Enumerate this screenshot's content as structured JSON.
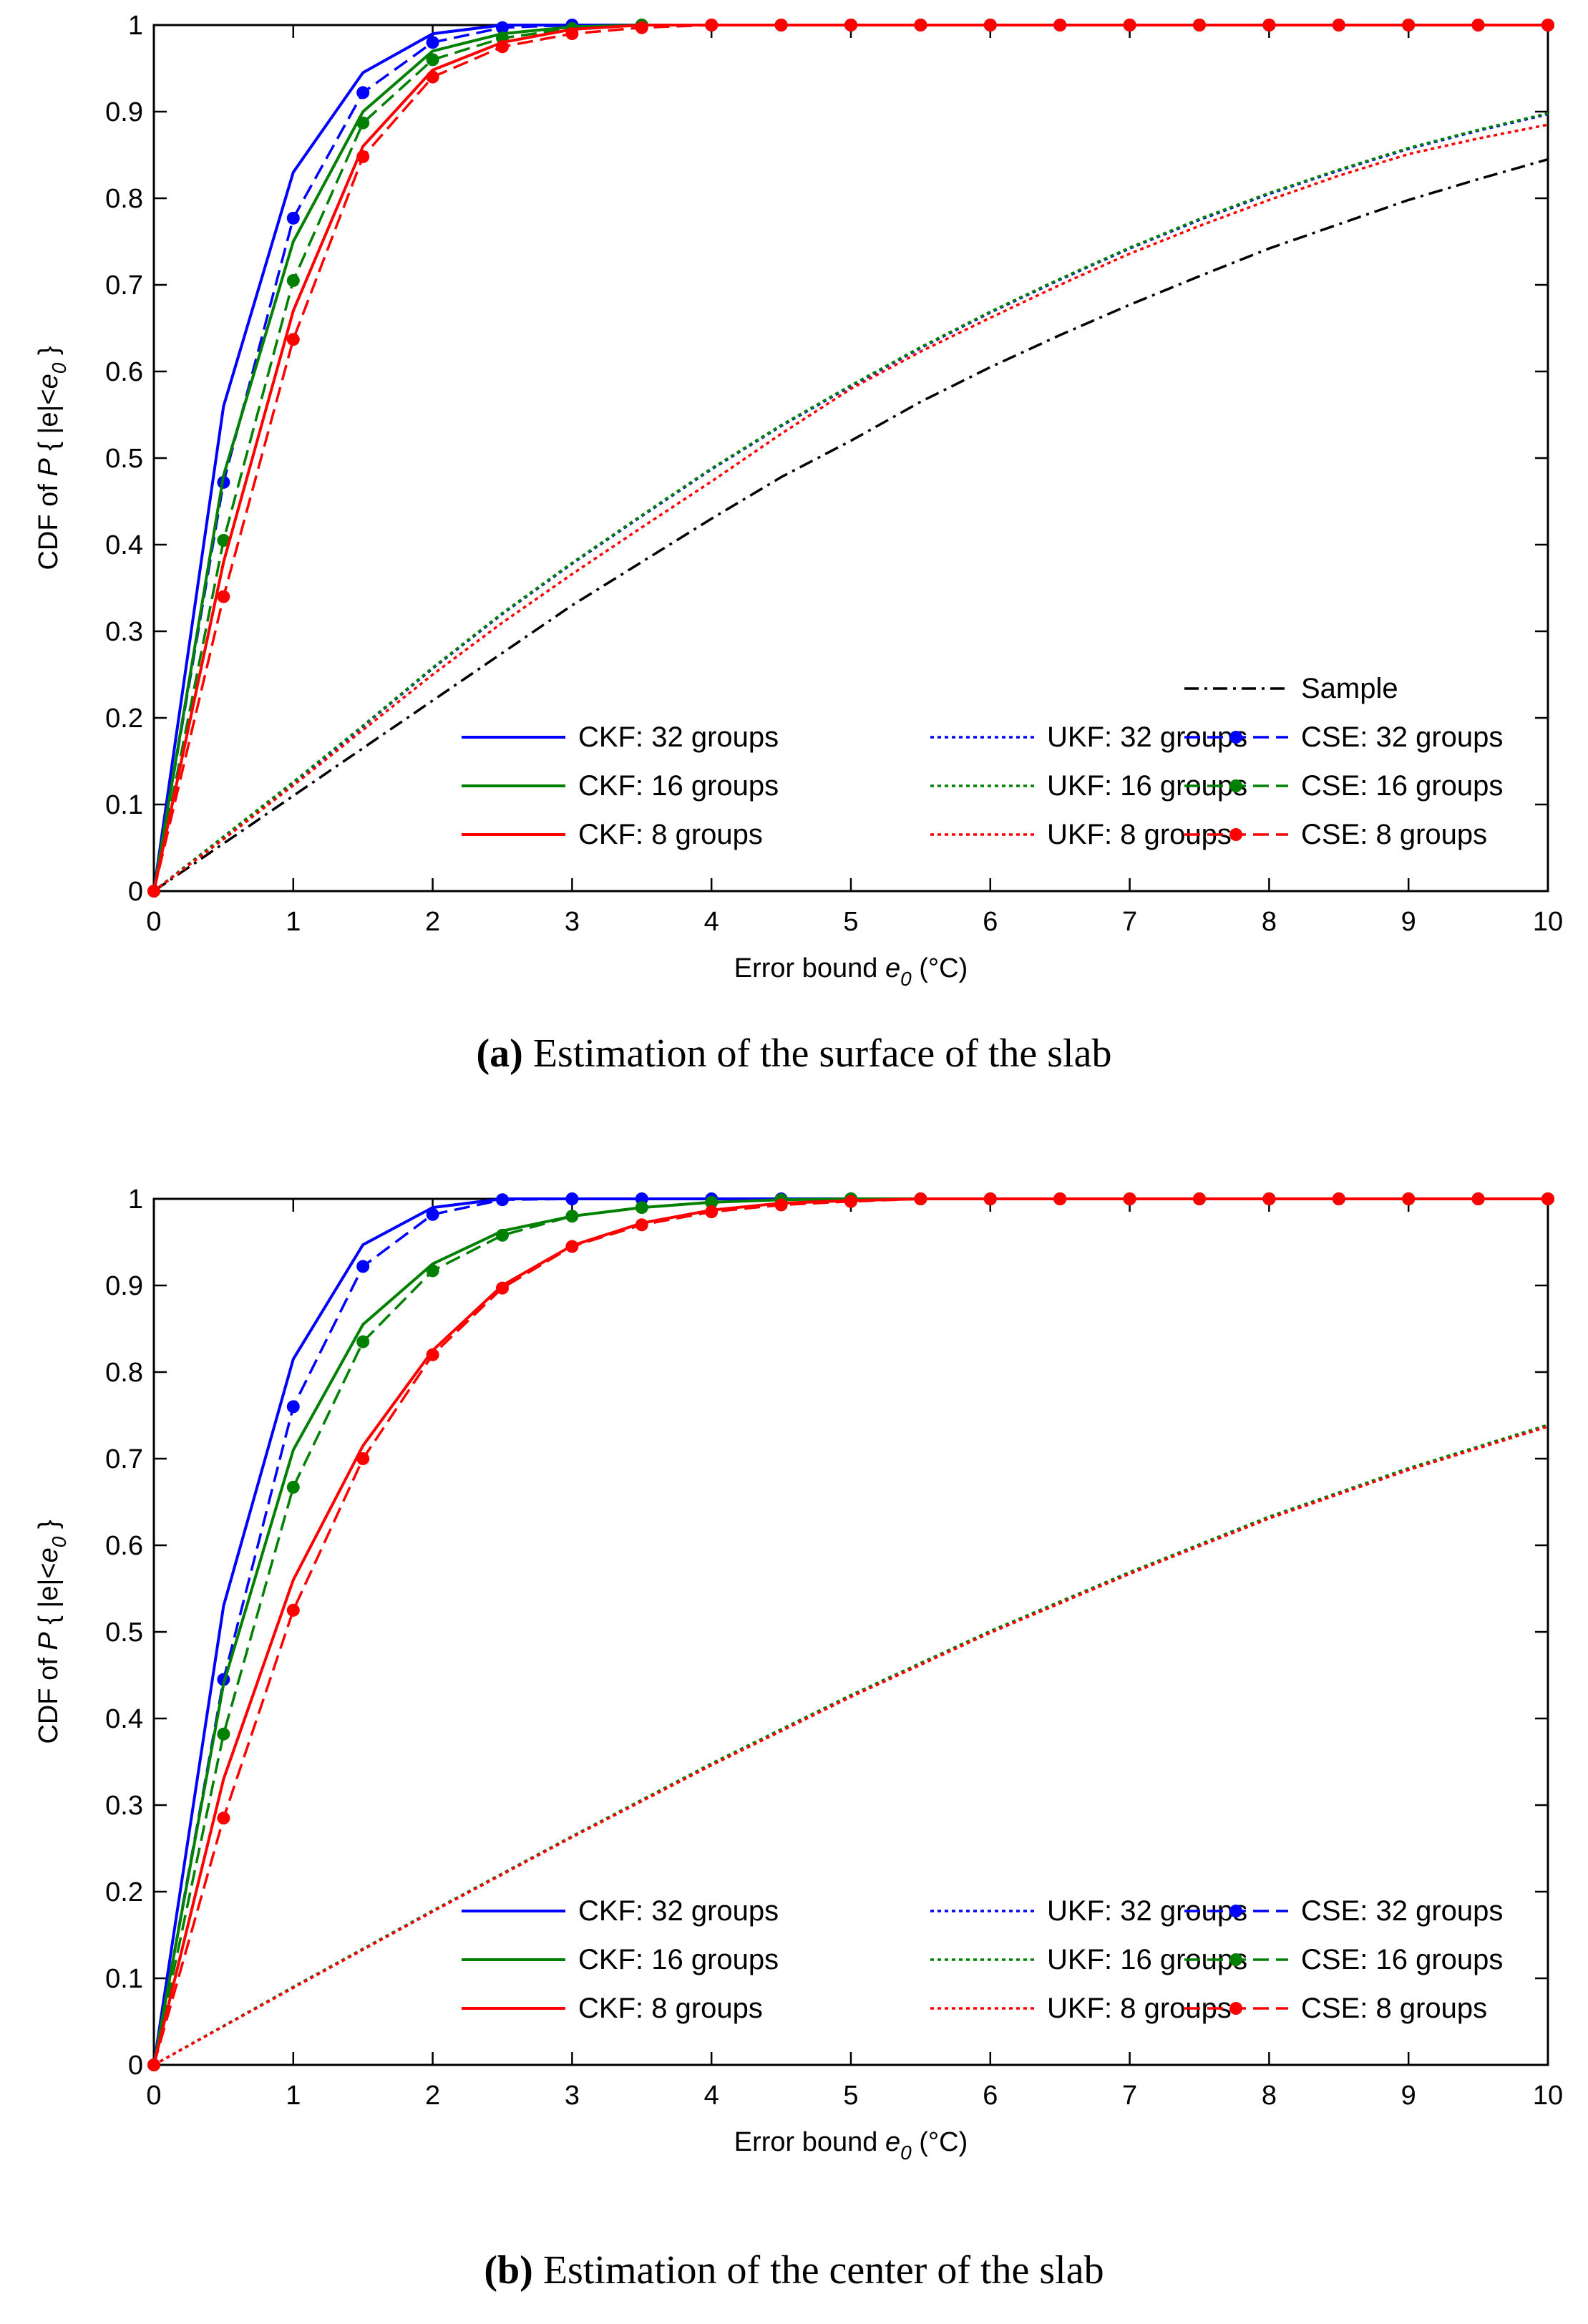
{
  "colors": {
    "blue": "#0000ff",
    "green": "#008000",
    "red": "#ff0000",
    "black": "#000000"
  },
  "chart_data": [
    {
      "id": "a",
      "type": "line",
      "caption_label": "(a)",
      "caption_text": "Estimation of the surface of the slab",
      "xlabel": "Error bound e0 (°C)",
      "xlabel_main": "Error bound ",
      "xlabel_var": "e",
      "xlabel_sub": "0",
      "xlabel_unit": " (°C)",
      "ylabel_prefix": "CDF of ",
      "ylabel_P": "P",
      "ylabel_mid": " { |e|<",
      "ylabel_e": "e",
      "ylabel_sub": "0",
      "ylabel_end": " }",
      "xlim": [
        0,
        10
      ],
      "ylim": [
        0,
        1
      ],
      "xticks": [
        0,
        1,
        2,
        3,
        4,
        5,
        6,
        7,
        8,
        9,
        10
      ],
      "xtick_labels": [
        "0",
        "1",
        "2",
        "3",
        "4",
        "5",
        "6",
        "7",
        "8",
        "9",
        "10"
      ],
      "yticks": [
        0,
        0.1,
        0.2,
        0.3,
        0.4,
        0.5,
        0.6,
        0.7,
        0.8,
        0.9,
        1
      ],
      "ytick_labels": [
        "0",
        "0.1",
        "0.2",
        "0.3",
        "0.4",
        "0.5",
        "0.6",
        "0.7",
        "0.8",
        "0.9",
        "1"
      ],
      "legend_position": "bottom-right",
      "series": [
        {
          "name": "Sample",
          "color": "black",
          "style": "dashdot",
          "markers": false,
          "x": [
            0,
            0.5,
            1,
            1.5,
            2,
            2.5,
            3,
            3.5,
            4,
            4.5,
            5,
            5.5,
            6,
            6.5,
            7,
            7.5,
            8,
            8.5,
            9,
            9.5,
            10
          ],
          "y": [
            0,
            0.055,
            0.11,
            0.165,
            0.22,
            0.275,
            0.33,
            0.38,
            0.43,
            0.478,
            0.52,
            0.565,
            0.605,
            0.642,
            0.677,
            0.71,
            0.742,
            0.77,
            0.798,
            0.822,
            0.845
          ]
        },
        {
          "name": "CKF: 32 groups",
          "color": "blue",
          "style": "solid",
          "markers": false,
          "x": [
            0,
            0.5,
            1,
            1.5,
            2,
            2.5,
            3,
            3.5,
            4,
            5,
            6,
            7,
            8,
            9,
            10
          ],
          "y": [
            0,
            0.56,
            0.83,
            0.945,
            0.99,
            1,
            1,
            1,
            1,
            1,
            1,
            1,
            1,
            1,
            1
          ]
        },
        {
          "name": "UKF: 32 groups",
          "color": "blue",
          "style": "dotted",
          "markers": false,
          "x": [
            0,
            0.5,
            1,
            1.5,
            2,
            2.5,
            3,
            3.5,
            4,
            4.5,
            5,
            5.5,
            6,
            6.5,
            7,
            7.5,
            8,
            8.5,
            9,
            9.5,
            10
          ],
          "y": [
            0,
            0.062,
            0.125,
            0.19,
            0.257,
            0.32,
            0.378,
            0.433,
            0.487,
            0.537,
            0.583,
            0.627,
            0.668,
            0.706,
            0.742,
            0.775,
            0.805,
            0.832,
            0.857,
            0.878,
            0.897
          ]
        },
        {
          "name": "CSE: 32 groups",
          "color": "blue",
          "style": "dashed",
          "markers": true,
          "x": [
            0,
            0.5,
            1,
            1.5,
            2,
            2.5,
            3,
            3.5,
            4,
            4.5,
            5,
            5.5,
            6,
            6.5,
            7,
            7.5,
            8,
            8.5,
            9,
            9.5,
            10
          ],
          "y": [
            0,
            0.472,
            0.777,
            0.922,
            0.98,
            0.997,
            1,
            1,
            1,
            1,
            1,
            1,
            1,
            1,
            1,
            1,
            1,
            1,
            1,
            1,
            1
          ]
        },
        {
          "name": "CKF: 16 groups",
          "color": "green",
          "style": "solid",
          "markers": false,
          "x": [
            0,
            0.5,
            1,
            1.5,
            2,
            2.5,
            3,
            3.5,
            4,
            5,
            6,
            7,
            8,
            9,
            10
          ],
          "y": [
            0,
            0.48,
            0.75,
            0.9,
            0.97,
            0.99,
            0.998,
            1,
            1,
            1,
            1,
            1,
            1,
            1,
            1
          ]
        },
        {
          "name": "UKF: 16 groups",
          "color": "green",
          "style": "dotted",
          "markers": false,
          "x": [
            0,
            0.5,
            1,
            1.5,
            2,
            2.5,
            3,
            3.5,
            4,
            4.5,
            5,
            5.5,
            6,
            6.5,
            7,
            7.5,
            8,
            8.5,
            9,
            9.5,
            10
          ],
          "y": [
            0,
            0.063,
            0.126,
            0.191,
            0.258,
            0.321,
            0.379,
            0.434,
            0.488,
            0.538,
            0.584,
            0.628,
            0.669,
            0.707,
            0.743,
            0.776,
            0.806,
            0.833,
            0.858,
            0.879,
            0.898
          ]
        },
        {
          "name": "CSE: 16 groups",
          "color": "green",
          "style": "dashed",
          "markers": true,
          "x": [
            0,
            0.5,
            1,
            1.5,
            2,
            2.5,
            3,
            3.5,
            4,
            4.5,
            5,
            5.5,
            6,
            6.5,
            7,
            7.5,
            8,
            8.5,
            9,
            9.5,
            10
          ],
          "y": [
            0,
            0.405,
            0.705,
            0.887,
            0.96,
            0.985,
            0.996,
            1,
            1,
            1,
            1,
            1,
            1,
            1,
            1,
            1,
            1,
            1,
            1,
            1,
            1
          ]
        },
        {
          "name": "CKF: 8 groups",
          "color": "red",
          "style": "solid",
          "markers": false,
          "x": [
            0,
            0.5,
            1,
            1.5,
            2,
            2.5,
            3,
            3.5,
            4,
            5,
            6,
            7,
            8,
            9,
            10
          ],
          "y": [
            0,
            0.38,
            0.67,
            0.86,
            0.948,
            0.98,
            0.995,
            1,
            1,
            1,
            1,
            1,
            1,
            1,
            1
          ]
        },
        {
          "name": "UKF: 8 groups",
          "color": "red",
          "style": "dotted",
          "markers": false,
          "x": [
            0,
            0.5,
            1,
            1.5,
            2,
            2.5,
            3,
            3.5,
            4,
            4.5,
            5,
            5.5,
            6,
            6.5,
            7,
            7.5,
            8,
            8.5,
            9,
            9.5,
            10
          ],
          "y": [
            0,
            0.06,
            0.122,
            0.186,
            0.25,
            0.31,
            0.366,
            0.42,
            0.473,
            0.528,
            0.58,
            0.623,
            0.662,
            0.7,
            0.736,
            0.768,
            0.798,
            0.826,
            0.851,
            0.869,
            0.885
          ]
        },
        {
          "name": "CSE: 8 groups",
          "color": "red",
          "style": "dashed",
          "markers": true,
          "x": [
            0,
            0.5,
            1,
            1.5,
            2,
            2.5,
            3,
            3.5,
            4,
            4.5,
            5,
            5.5,
            6,
            6.5,
            7,
            7.5,
            8,
            8.5,
            9,
            9.5,
            10
          ],
          "y": [
            0,
            0.34,
            0.637,
            0.848,
            0.94,
            0.975,
            0.99,
            0.997,
            1,
            1,
            1,
            1,
            1,
            1,
            1,
            1,
            1,
            1,
            1,
            1,
            1
          ]
        }
      ]
    },
    {
      "id": "b",
      "type": "line",
      "caption_label": "(b)",
      "caption_text": "Estimation of the center of the slab",
      "xlabel": "Error bound e0 (°C)",
      "xlabel_main": "Error bound ",
      "xlabel_var": "e",
      "xlabel_sub": "0",
      "xlabel_unit": " (°C)",
      "ylabel_prefix": "CDF of ",
      "ylabel_P": "P",
      "ylabel_mid": " { |e|<",
      "ylabel_e": "e",
      "ylabel_sub": "0",
      "ylabel_end": " }",
      "xlim": [
        0,
        10
      ],
      "ylim": [
        0,
        1
      ],
      "xticks": [
        0,
        1,
        2,
        3,
        4,
        5,
        6,
        7,
        8,
        9,
        10
      ],
      "xtick_labels": [
        "0",
        "1",
        "2",
        "3",
        "4",
        "5",
        "6",
        "7",
        "8",
        "9",
        "10"
      ],
      "yticks": [
        0,
        0.1,
        0.2,
        0.3,
        0.4,
        0.5,
        0.6,
        0.7,
        0.8,
        0.9,
        1
      ],
      "ytick_labels": [
        "0",
        "0.1",
        "0.2",
        "0.3",
        "0.4",
        "0.5",
        "0.6",
        "0.7",
        "0.8",
        "0.9",
        "1"
      ],
      "legend_position": "bottom-right",
      "series": [
        {
          "name": "CKF: 32 groups",
          "color": "blue",
          "style": "solid",
          "markers": false,
          "x": [
            0,
            0.5,
            1,
            1.5,
            2,
            2.5,
            3,
            4,
            5,
            6,
            7,
            8,
            9,
            10
          ],
          "y": [
            0,
            0.53,
            0.815,
            0.947,
            0.99,
            1,
            1,
            1,
            1,
            1,
            1,
            1,
            1,
            1
          ]
        },
        {
          "name": "UKF: 32 groups",
          "color": "blue",
          "style": "dotted",
          "markers": false,
          "x": [
            0,
            1,
            2,
            3,
            4,
            5,
            6,
            7,
            8,
            9,
            10
          ],
          "y": [
            0,
            0.09,
            0.178,
            0.264,
            0.347,
            0.426,
            0.5,
            0.568,
            0.632,
            0.688,
            0.738
          ]
        },
        {
          "name": "CSE: 32 groups",
          "color": "blue",
          "style": "dashed",
          "markers": true,
          "x": [
            0,
            0.5,
            1,
            1.5,
            2,
            2.5,
            3,
            3.5,
            4,
            4.5,
            5,
            5.5,
            6,
            6.5,
            7,
            7.5,
            8,
            8.5,
            9,
            9.5,
            10
          ],
          "y": [
            0,
            0.445,
            0.76,
            0.922,
            0.982,
            0.999,
            1,
            1,
            1,
            1,
            1,
            1,
            1,
            1,
            1,
            1,
            1,
            1,
            1,
            1,
            1
          ]
        },
        {
          "name": "CKF: 16 groups",
          "color": "green",
          "style": "solid",
          "markers": false,
          "x": [
            0,
            0.5,
            1,
            1.5,
            2,
            2.5,
            3,
            3.5,
            4,
            4.5,
            5,
            6,
            7,
            8,
            9,
            10
          ],
          "y": [
            0,
            0.44,
            0.71,
            0.855,
            0.925,
            0.963,
            0.98,
            0.99,
            0.996,
            0.999,
            1,
            1,
            1,
            1,
            1,
            1
          ]
        },
        {
          "name": "UKF: 16 groups",
          "color": "green",
          "style": "dotted",
          "markers": false,
          "x": [
            0,
            1,
            2,
            3,
            4,
            5,
            6,
            7,
            8,
            9,
            10
          ],
          "y": [
            0,
            0.09,
            0.178,
            0.264,
            0.348,
            0.427,
            0.501,
            0.569,
            0.633,
            0.689,
            0.739
          ]
        },
        {
          "name": "CSE: 16 groups",
          "color": "green",
          "style": "dashed",
          "markers": true,
          "x": [
            0,
            0.5,
            1,
            1.5,
            2,
            2.5,
            3,
            3.5,
            4,
            4.5,
            5,
            5.5,
            6,
            6.5,
            7,
            7.5,
            8,
            8.5,
            9,
            9.5,
            10
          ],
          "y": [
            0,
            0.382,
            0.667,
            0.835,
            0.917,
            0.958,
            0.98,
            0.99,
            0.996,
            0.999,
            1,
            1,
            1,
            1,
            1,
            1,
            1,
            1,
            1,
            1,
            1
          ]
        },
        {
          "name": "CKF: 8 groups",
          "color": "red",
          "style": "solid",
          "markers": false,
          "x": [
            0,
            0.5,
            1,
            1.5,
            2,
            2.5,
            3,
            3.5,
            4,
            4.5,
            5,
            5.5,
            6,
            7,
            8,
            9,
            10
          ],
          "y": [
            0,
            0.33,
            0.56,
            0.715,
            0.825,
            0.9,
            0.946,
            0.972,
            0.987,
            0.995,
            0.998,
            1,
            1,
            1,
            1,
            1,
            1
          ]
        },
        {
          "name": "UKF: 8 groups",
          "color": "red",
          "style": "dotted",
          "markers": false,
          "x": [
            0,
            1,
            2,
            3,
            4,
            5,
            6,
            7,
            8,
            9,
            10
          ],
          "y": [
            0,
            0.089,
            0.177,
            0.263,
            0.346,
            0.425,
            0.499,
            0.567,
            0.631,
            0.687,
            0.737
          ]
        },
        {
          "name": "CSE: 8 groups",
          "color": "red",
          "style": "dashed",
          "markers": true,
          "x": [
            0,
            0.5,
            1,
            1.5,
            2,
            2.5,
            3,
            3.5,
            4,
            4.5,
            5,
            5.5,
            6,
            6.5,
            7,
            7.5,
            8,
            8.5,
            9,
            9.5,
            10
          ],
          "y": [
            0,
            0.285,
            0.525,
            0.7,
            0.82,
            0.897,
            0.945,
            0.97,
            0.985,
            0.993,
            0.997,
            1,
            1,
            1,
            1,
            1,
            1,
            1,
            1,
            1,
            1
          ]
        }
      ]
    }
  ]
}
